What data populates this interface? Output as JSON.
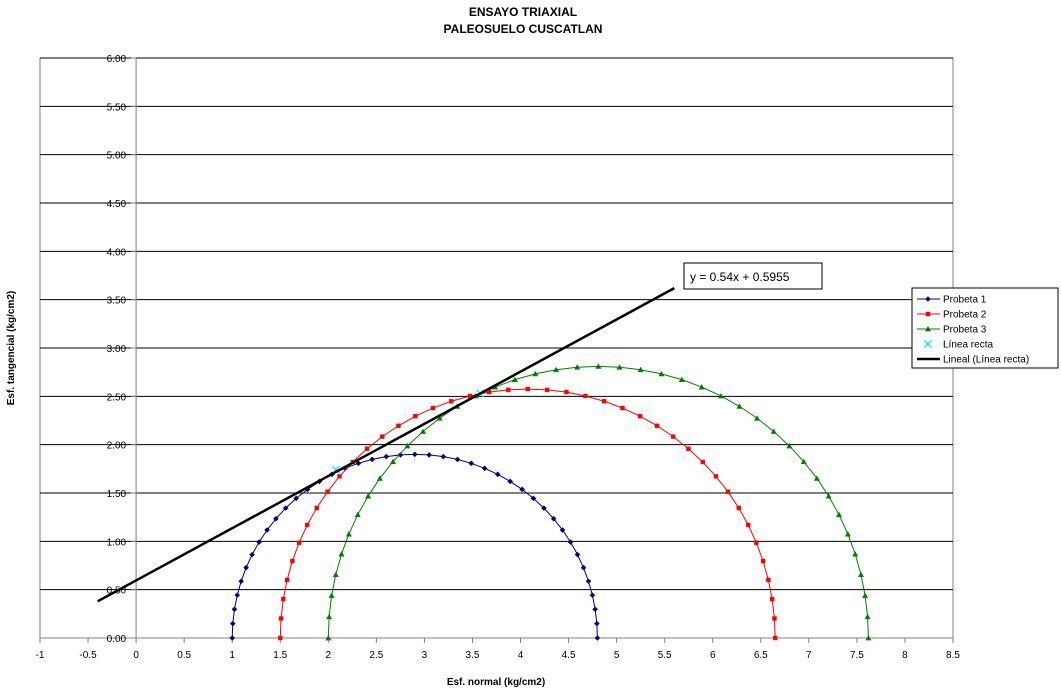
{
  "chart_data": {
    "type": "scatter",
    "title": "ENSAYO TRIAXIAL",
    "subtitle": "PALEOSUELO CUSCATLAN",
    "xlabel": "Esf. normal (kg/cm2)",
    "ylabel": "Esf. tangencial (kg/cm2)",
    "xlim": [
      -1,
      8.5
    ],
    "ylim": [
      0,
      6
    ],
    "x_ticks": [
      "-1",
      "-0.5",
      "0",
      "0.5",
      "1",
      "1.5",
      "2",
      "2.5",
      "3",
      "3.5",
      "4",
      "4.5",
      "5",
      "5.5",
      "6",
      "6.5",
      "7",
      "7.5",
      "8",
      "8.5"
    ],
    "y_ticks": [
      "0.00",
      "0.50",
      "1.00",
      "1.50",
      "2.00",
      "2.50",
      "3.00",
      "3.50",
      "4.00",
      "4.50",
      "5.00",
      "5.50",
      "6.00"
    ],
    "grid": "horizontal",
    "legend_position": "right",
    "series": [
      {
        "name": "Probeta 1",
        "kind": "mohr_circle",
        "sigma3": 1.0,
        "sigma1": 4.8,
        "color": "#000080",
        "marker": "diamond"
      },
      {
        "name": "Probeta 2",
        "kind": "mohr_circle",
        "sigma3": 1.5,
        "sigma1": 6.65,
        "color": "#ff0000",
        "marker": "square"
      },
      {
        "name": "Probeta 3",
        "kind": "mohr_circle",
        "sigma3": 2.0,
        "sigma1": 7.62,
        "color": "#008000",
        "marker": "triangle"
      },
      {
        "name": "Línea recta",
        "kind": "points",
        "color": "#00e5ff",
        "marker": "x",
        "x": [
          2.08,
          3.58
        ],
        "y": [
          1.74,
          2.53
        ]
      },
      {
        "name": "Lineal (Línea recta)",
        "kind": "trendline",
        "color": "#000000",
        "slope": 0.54,
        "intercept": 0.5955,
        "x_range": [
          -0.4,
          5.6
        ]
      }
    ],
    "annotations": [
      {
        "text": "y = 0.54x + 0.5955"
      }
    ]
  }
}
